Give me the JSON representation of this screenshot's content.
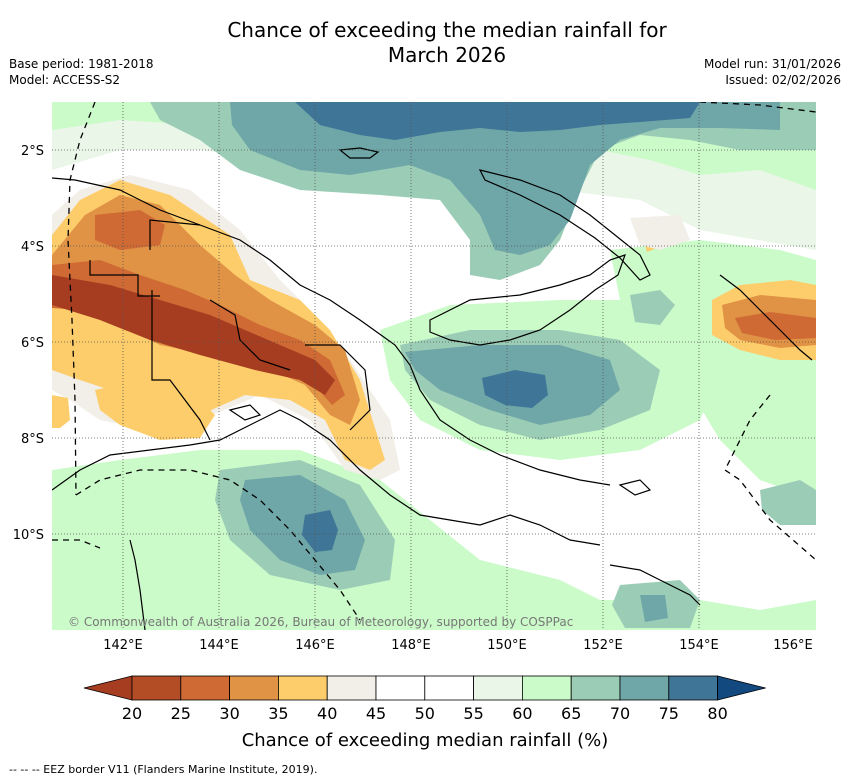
{
  "title_line1": "Chance of exceeding the median rainfall for",
  "title_line2": "March 2026",
  "base_period": "Base period: 1981-2018",
  "model": "Model: ACCESS-S2",
  "model_run": "Model run: 31/01/2026",
  "issued": "Issued: 02/02/2026",
  "copyright": "© Commonwealth of Australia 2026, Bureau of Meteorology, supported by COSPPac",
  "lat_labels": [
    "2°S",
    "4°S",
    "6°S",
    "8°S",
    "10°S"
  ],
  "lon_labels": [
    "142°E",
    "144°E",
    "146°E",
    "148°E",
    "150°E",
    "152°E",
    "154°E",
    "156°E"
  ],
  "colorbar": {
    "ticks": [
      "20",
      "25",
      "30",
      "35",
      "40",
      "45",
      "50",
      "55",
      "60",
      "65",
      "70",
      "75",
      "80"
    ],
    "colors": [
      "#a63c20",
      "#b24d25",
      "#cf6a34",
      "#e09245",
      "#fdcd6c",
      "#f2eee8",
      "#ffffff",
      "#ffffff",
      "#eaf6e8",
      "#cbfbc9",
      "#9bcdb6",
      "#6fa6a8",
      "#3f7596",
      "#124a80"
    ],
    "label": "Chance of exceeding median rainfall (%)"
  },
  "footnote": "-- -- -- EEZ border V11 (Flanders Marine Institute, 2019)."
}
